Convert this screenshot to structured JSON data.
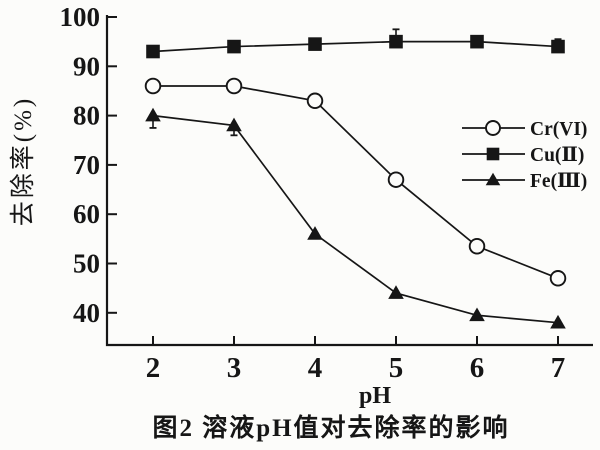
{
  "figure": {
    "y_axis_label": "去除率(%)",
    "x_axis_label": "pH",
    "caption": "图2  溶液pH值对去除率的影响"
  },
  "chart_data": {
    "type": "line",
    "title": "图2 溶液pH值对去除率的影响",
    "xlabel": "pH",
    "ylabel": "去除率(%)",
    "x": [
      2,
      3,
      4,
      5,
      6,
      7
    ],
    "x_ticks": [
      "2",
      "3",
      "4",
      "5",
      "6",
      "7"
    ],
    "y_ticks": [
      "100",
      "90",
      "80",
      "70",
      "60",
      "50",
      "40"
    ],
    "y_tick_values": [
      100,
      90,
      80,
      70,
      60,
      50,
      40
    ],
    "ylim": [
      33,
      100
    ],
    "xlim": [
      1.5,
      7.4
    ],
    "grid": false,
    "legend_position": "inside-right-middle",
    "series": [
      {
        "name": "Cr(VI)",
        "marker": "open-circle",
        "values": [
          86,
          86,
          83,
          67,
          53.5,
          47
        ],
        "error_bars": []
      },
      {
        "name": "Cu(Ⅱ)",
        "marker": "filled-square",
        "values": [
          93,
          94,
          94.5,
          95,
          95,
          94
        ],
        "error_bars": [
          {
            "x": 5,
            "delta": 2.5,
            "dir": "up"
          },
          {
            "x": 7,
            "delta": 1.5,
            "dir": "up"
          }
        ]
      },
      {
        "name": "Fe(Ⅲ)",
        "marker": "filled-triangle",
        "values": [
          80,
          78,
          56,
          44,
          39.5,
          38
        ],
        "error_bars": [
          {
            "x": 2,
            "delta": 2.5,
            "dir": "down"
          },
          {
            "x": 3,
            "delta": 2,
            "dir": "down"
          }
        ]
      }
    ],
    "colors": {
      "ink": "#161616",
      "paper": "#fcfcfa"
    }
  }
}
